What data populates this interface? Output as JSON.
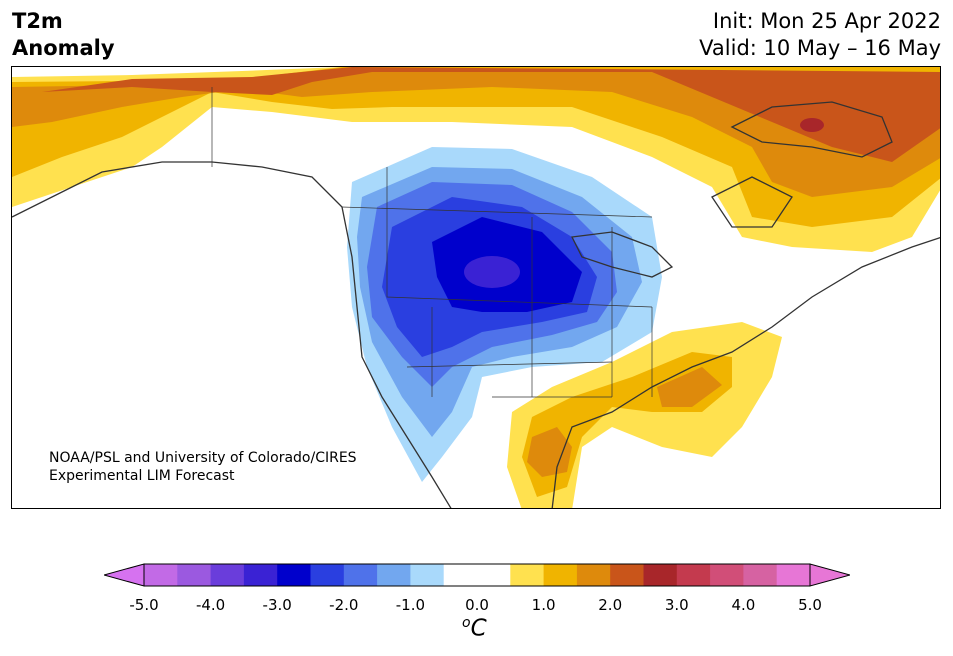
{
  "header": {
    "title_line1": "T2m",
    "title_line2": "Anomaly",
    "init_text": "Init: Mon 25 Apr 2022",
    "valid_text": "Valid: 10 May – 16 May"
  },
  "credit": {
    "line1": "NOAA/PSL and University of Colorado/CIRES",
    "line2": "Experimental LIM Forecast"
  },
  "colorbar": {
    "unit_super": "o",
    "unit_main": "C",
    "ticks": [
      "-5.0",
      "-4.0",
      "-3.0",
      "-2.0",
      "-1.0",
      "0.0",
      "1.0",
      "2.0",
      "3.0",
      "4.0",
      "5.0"
    ],
    "colors": [
      "#c26ae6",
      "#9b59e0",
      "#6a3ddb",
      "#3a22d4",
      "#0000cc",
      "#2a3fe0",
      "#4f72ea",
      "#72a7ef",
      "#a9d9fb",
      "#ffffff",
      "#ffffff",
      "#ffe14f",
      "#f0b400",
      "#de8a0c",
      "#c9551a",
      "#a8262a",
      "#c43a4e",
      "#d14e78",
      "#d662a2",
      "#e776d6"
    ],
    "under_color": "#d672f0",
    "over_color": "#e776d6"
  }
}
